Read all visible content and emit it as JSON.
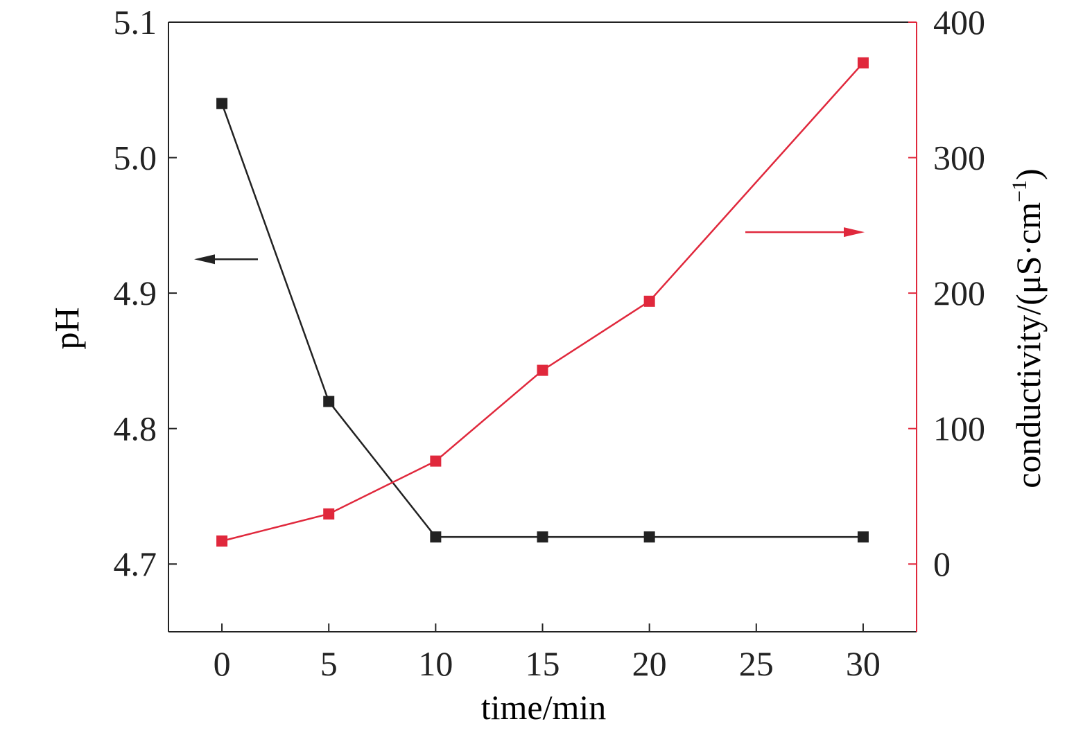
{
  "chart_data": {
    "type": "line",
    "xlabel": "time/min",
    "ylabel": "pH",
    "y2label": "conductivity/(μS·cm",
    "y2label_sup": "−1",
    "y2label_close": ")",
    "xlim": [
      -2.5,
      32.5
    ],
    "ylim": [
      4.65,
      5.1
    ],
    "y2lim": [
      -50,
      400
    ],
    "x_ticks": [
      0,
      5,
      10,
      15,
      20,
      25,
      30
    ],
    "x_tick_labels": [
      "0",
      "5",
      "10",
      "15",
      "20",
      "25",
      "30"
    ],
    "y_ticks": [
      4.7,
      4.8,
      4.9,
      5.0,
      5.1
    ],
    "y_tick_labels": [
      "4.7",
      "4.8",
      "4.9",
      "5.0",
      "5.1"
    ],
    "y2_ticks": [
      0,
      100,
      200,
      300,
      400
    ],
    "y2_tick_labels": [
      "0",
      "100",
      "200",
      "300",
      "400"
    ],
    "grid": false,
    "legend": "none",
    "series": [
      {
        "axis": "left",
        "color": "#222222",
        "marker": "square",
        "x": [
          0,
          5,
          10,
          15,
          20,
          30
        ],
        "values": [
          5.04,
          4.82,
          4.72,
          4.72,
          4.72,
          4.72
        ]
      },
      {
        "axis": "right",
        "color": "#e0283c",
        "marker": "square",
        "x": [
          0,
          5,
          10,
          15,
          20,
          30
        ],
        "values": [
          17,
          37,
          76,
          143,
          194,
          370
        ]
      }
    ],
    "annotations": [
      {
        "type": "arrow",
        "direction": "left",
        "series": 0,
        "color": "#222222"
      },
      {
        "type": "arrow",
        "direction": "right",
        "series": 1,
        "color": "#e0283c"
      }
    ]
  }
}
